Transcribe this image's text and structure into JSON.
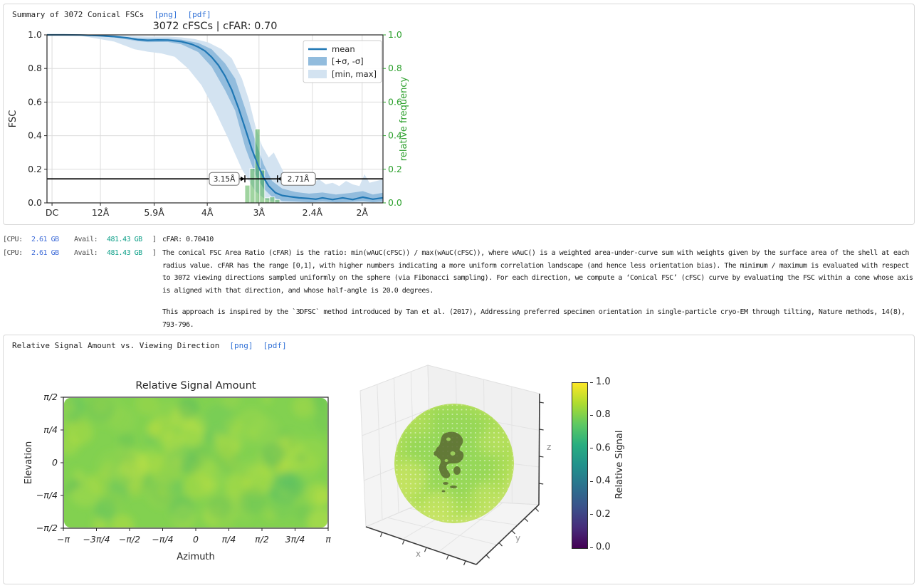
{
  "panel1": {
    "title": "Summary of 3072 Conical FSCs",
    "links": {
      "png": "[png]",
      "pdf": "[pdf]"
    }
  },
  "panel2": {
    "title": "Relative Signal Amount vs. Viewing Direction",
    "links": {
      "png": "[png]",
      "pdf": "[pdf]"
    }
  },
  "logs": {
    "prefix": {
      "cpu_label": "[CPU:",
      "cpu_value": "2.61 GB",
      "avail_label": "Avail:",
      "avail_value": "481.43 GB",
      "close": "]"
    },
    "line1": "cFAR: 0.70410",
    "para1": "The conical FSC Area Ratio (cFAR) is the ratio: min(wAuC(cFSC)) / max(wAuC(cFSC)), where wAuC() is a weighted area-under-curve sum with weights given by the surface area of the shell at each radius value. cFAR has the range [0,1], with higher numbers indicating a more uniform correlation landscape (and hence less orientation bias). The minimum / maximum is evaluated with respect to 3072 viewing directions sampled uniformly on the sphere (via Fibonacci sampling). For each direction, we compute a ‘Conical FSC’ (cFSC) curve by evaluating the FSC within a cone whose axis is aligned with that direction, and whose half-angle is 20.0 degrees.",
    "para2": "This approach is inspired by the `3DFSC` method introduced by Tan et al. (2017), Addressing preferred specimen orientation in single-particle cryo-EM through tilting, Nature methods, 14(8), 793-796."
  },
  "chart_data": [
    {
      "id": "cfsc_curves",
      "type": "line",
      "title": "3072 cFSCs | cFAR: 0.70",
      "ylabel": "FSC",
      "y2label": "relative frequency",
      "ylim": [
        0.0,
        1.0
      ],
      "grid": true,
      "legend_position": "upper right",
      "legend": [
        "mean",
        "[+σ, -σ]",
        "[min, max]"
      ],
      "xticks": [
        {
          "f": 0.015,
          "label": "DC"
        },
        {
          "f": 0.159,
          "label": "12Å"
        },
        {
          "f": 0.319,
          "label": "5.9Å"
        },
        {
          "f": 0.477,
          "label": "4Å"
        },
        {
          "f": 0.631,
          "label": "3Å"
        },
        {
          "f": 0.79,
          "label": "2.4Å"
        },
        {
          "f": 0.938,
          "label": "2Å"
        }
      ],
      "yticks": [
        0.0,
        0.2,
        0.4,
        0.6,
        0.8,
        1.0
      ],
      "y2ticks": [
        0.0,
        0.2,
        0.4,
        0.6,
        0.8,
        1.0
      ],
      "threshold": {
        "value": 0.143
      },
      "annotations": [
        {
          "label": "3.15Å",
          "tip_f": 0.589,
          "box_f": [
            0.483,
            0.572
          ]
        },
        {
          "label": "2.71Å",
          "tip_f": 0.686,
          "box_f": [
            0.697,
            0.799
          ]
        }
      ],
      "mean": [
        [
          0,
          1
        ],
        [
          0.05,
          1
        ],
        [
          0.1,
          0.999
        ],
        [
          0.16,
          0.995
        ],
        [
          0.2,
          0.99
        ],
        [
          0.24,
          0.982
        ],
        [
          0.27,
          0.972
        ],
        [
          0.3,
          0.968
        ],
        [
          0.33,
          0.97
        ],
        [
          0.36,
          0.969
        ],
        [
          0.4,
          0.96
        ],
        [
          0.43,
          0.945
        ],
        [
          0.45,
          0.928
        ],
        [
          0.47,
          0.905
        ],
        [
          0.49,
          0.868
        ],
        [
          0.51,
          0.82
        ],
        [
          0.53,
          0.755
        ],
        [
          0.55,
          0.672
        ],
        [
          0.57,
          0.565
        ],
        [
          0.59,
          0.442
        ],
        [
          0.61,
          0.318
        ],
        [
          0.63,
          0.213
        ],
        [
          0.645,
          0.15
        ],
        [
          0.66,
          0.1
        ],
        [
          0.68,
          0.06
        ],
        [
          0.7,
          0.044
        ],
        [
          0.72,
          0.038
        ],
        [
          0.75,
          0.03
        ],
        [
          0.78,
          0.026
        ],
        [
          0.8,
          0.022
        ],
        [
          0.82,
          0.03
        ],
        [
          0.85,
          0.02
        ],
        [
          0.88,
          0.03
        ],
        [
          0.91,
          0.02
        ],
        [
          0.94,
          0.034
        ],
        [
          0.97,
          0.022
        ],
        [
          1,
          0.03
        ]
      ],
      "sigma_upper": [
        [
          0,
          1
        ],
        [
          0.1,
          1
        ],
        [
          0.2,
          0.993
        ],
        [
          0.27,
          0.98
        ],
        [
          0.3,
          0.978
        ],
        [
          0.36,
          0.978
        ],
        [
          0.4,
          0.972
        ],
        [
          0.45,
          0.952
        ],
        [
          0.49,
          0.915
        ],
        [
          0.53,
          0.83
        ],
        [
          0.56,
          0.74
        ],
        [
          0.59,
          0.56
        ],
        [
          0.62,
          0.37
        ],
        [
          0.645,
          0.23
        ],
        [
          0.67,
          0.13
        ],
        [
          0.7,
          0.085
        ],
        [
          0.74,
          0.065
        ],
        [
          0.78,
          0.055
        ],
        [
          0.82,
          0.062
        ],
        [
          0.86,
          0.05
        ],
        [
          0.9,
          0.058
        ],
        [
          0.94,
          0.07
        ],
        [
          0.97,
          0.05
        ],
        [
          1,
          0.06
        ]
      ],
      "sigma_lower": [
        [
          0,
          1
        ],
        [
          0.1,
          0.998
        ],
        [
          0.2,
          0.985
        ],
        [
          0.27,
          0.963
        ],
        [
          0.3,
          0.957
        ],
        [
          0.36,
          0.958
        ],
        [
          0.4,
          0.944
        ],
        [
          0.45,
          0.898
        ],
        [
          0.49,
          0.81
        ],
        [
          0.53,
          0.67
        ],
        [
          0.56,
          0.55
        ],
        [
          0.59,
          0.33
        ],
        [
          0.62,
          0.17
        ],
        [
          0.645,
          0.085
        ],
        [
          0.67,
          0.035
        ],
        [
          0.7,
          0.012
        ],
        [
          0.74,
          0.008
        ],
        [
          0.78,
          0.004
        ],
        [
          0.82,
          0.008
        ],
        [
          0.86,
          0.003
        ],
        [
          0.9,
          0.005
        ],
        [
          0.94,
          0.01
        ],
        [
          0.97,
          0.004
        ],
        [
          1,
          0.008
        ]
      ],
      "max": [
        [
          0,
          1
        ],
        [
          0.1,
          1
        ],
        [
          0.2,
          0.997
        ],
        [
          0.3,
          0.99
        ],
        [
          0.36,
          0.99
        ],
        [
          0.4,
          0.985
        ],
        [
          0.44,
          0.975
        ],
        [
          0.48,
          0.955
        ],
        [
          0.52,
          0.915
        ],
        [
          0.55,
          0.86
        ],
        [
          0.58,
          0.74
        ],
        [
          0.6,
          0.62
        ],
        [
          0.62,
          0.46
        ],
        [
          0.64,
          0.34
        ],
        [
          0.66,
          0.27
        ],
        [
          0.675,
          0.3
        ],
        [
          0.69,
          0.24
        ],
        [
          0.71,
          0.16
        ],
        [
          0.73,
          0.12
        ],
        [
          0.75,
          0.13
        ],
        [
          0.77,
          0.1
        ],
        [
          0.79,
          0.12
        ],
        [
          0.81,
          0.14
        ],
        [
          0.83,
          0.11
        ],
        [
          0.85,
          0.12
        ],
        [
          0.87,
          0.1
        ],
        [
          0.89,
          0.13
        ],
        [
          0.91,
          0.11
        ],
        [
          0.93,
          0.1
        ],
        [
          0.945,
          0.17
        ],
        [
          0.96,
          0.12
        ],
        [
          0.98,
          0.13
        ],
        [
          1,
          0.14
        ]
      ],
      "min": [
        [
          0,
          1
        ],
        [
          0.1,
          0.995
        ],
        [
          0.2,
          0.96
        ],
        [
          0.26,
          0.915
        ],
        [
          0.3,
          0.9
        ],
        [
          0.34,
          0.89
        ],
        [
          0.38,
          0.87
        ],
        [
          0.42,
          0.8
        ],
        [
          0.46,
          0.7
        ],
        [
          0.5,
          0.55
        ],
        [
          0.54,
          0.38
        ],
        [
          0.58,
          0.2
        ],
        [
          0.62,
          0.07
        ],
        [
          0.65,
          0.02
        ],
        [
          0.68,
          0.005
        ],
        [
          0.72,
          0
        ],
        [
          0.8,
          0
        ],
        [
          0.9,
          0
        ],
        [
          1,
          0
        ]
      ],
      "hist": {
        "x": [
          0.589,
          0.604,
          0.619,
          0.633,
          0.648,
          0.663,
          0.678
        ],
        "width": 0.0148,
        "heights": [
          0.105,
          0.205,
          0.44,
          0.195,
          0.03,
          0.035,
          0.02
        ]
      },
      "colors": {
        "mean": "#1f77b4",
        "sigma": "#92bcdd",
        "range": "#d3e3f1",
        "hist": "#2ca02c",
        "axis2": "#2ca02c",
        "threshold": "#000000",
        "grid": "#dcdcdc",
        "spine": "#262626"
      }
    },
    {
      "id": "signal_map",
      "type": "heatmap",
      "title": "Relative Signal Amount",
      "xlabel": "Azimuth",
      "ylabel": "Elevation",
      "xticks": [
        "−π",
        "−3π/4",
        "−π/2",
        "−π/4",
        "0",
        "π/4",
        "π/2",
        "3π/4",
        "π"
      ],
      "yticks": [
        "π/2",
        "π/4",
        "0",
        "−π/4",
        "−π/2"
      ],
      "colormap": "viridis",
      "value_range_estimate": [
        0.75,
        0.95
      ],
      "palette": {
        "base": "#82d150",
        "blobs": [
          "#c9e23a",
          "#bede3d",
          "#52bd68",
          "#46b161",
          "#a4d94b",
          "#d4e740"
        ]
      }
    },
    {
      "id": "signal_sphere",
      "type": "scatter3d",
      "axis_labels": [
        "x",
        "y",
        "z"
      ],
      "colorbar": {
        "label": "Relative Signal",
        "ticks": [
          "0.0",
          "0.2",
          "0.4",
          "0.6",
          "0.8",
          "1.0"
        ],
        "stops": [
          "#440154",
          "#472d7b",
          "#3b528b",
          "#2c728e",
          "#21918c",
          "#28ae80",
          "#5ec962",
          "#addc30",
          "#fde725"
        ]
      }
    }
  ]
}
